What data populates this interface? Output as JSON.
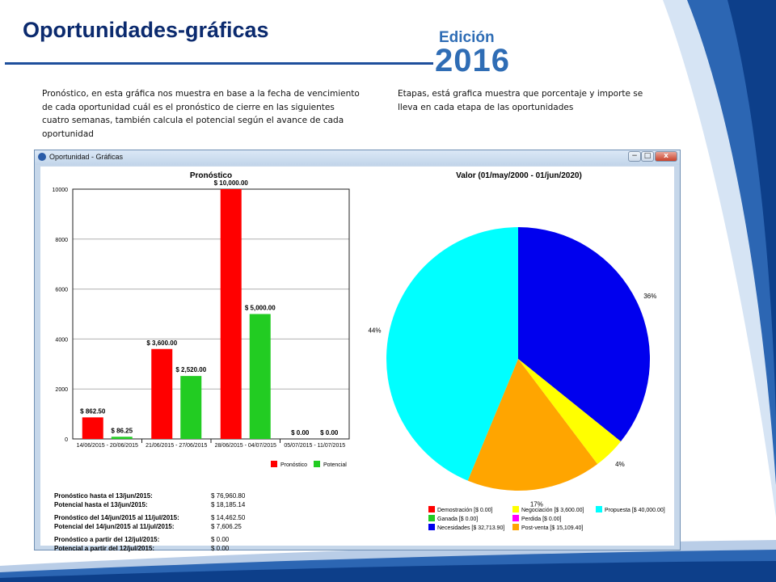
{
  "slide": {
    "title": "Oportunidades-gráficas",
    "badge_top": "Edición",
    "badge_year": "2016",
    "desc_left": "Pronóstico, en esta gráfica nos muestra en base a la fecha de vencimiento de cada oportunidad cuál es el pronóstico de cierre en las siguientes cuatro semanas, también calcula el potencial según el avance de cada oportunidad",
    "desc_right": "Etapas, está grafica muestra que porcentaje y importe se lleva en cada etapa de las oportunidades",
    "colors": {
      "title": "#0b2a6e",
      "accent": "#2f6db5"
    }
  },
  "window": {
    "title": "Oportunidad - Gráficas",
    "min_glyph": "−",
    "max_glyph": "□",
    "close_glyph": "x"
  },
  "chart_data": [
    {
      "type": "bar",
      "title": "Pronóstico",
      "xlabel": "",
      "ylabel": "",
      "categories": [
        "14/06/2015 - 20/06/2015",
        "21/06/2015 - 27/06/2015",
        "28/06/2015 - 04/07/2015",
        "05/07/2015 - 11/07/2015"
      ],
      "series": [
        {
          "name": "Pronóstico",
          "color": "#ff0000",
          "values": [
            862.5,
            3600,
            10000,
            0
          ],
          "labels": [
            "$ 862.50",
            "$ 3,600.00",
            "$ 10,000.00",
            "$ 0.00"
          ]
        },
        {
          "name": "Potencial",
          "color": "#22cc22",
          "values": [
            86.25,
            2520,
            5000,
            0
          ],
          "labels": [
            "$ 86.25",
            "$ 2,520.00",
            "$ 5,000.00",
            "$ 0.00"
          ]
        }
      ],
      "ylim": [
        0,
        10000
      ],
      "yticks": [
        0,
        2000,
        4000,
        6000,
        8000,
        10000
      ],
      "grid": true,
      "legend_position": "bottom-right"
    },
    {
      "type": "pie",
      "title": "Valor (01/may/2000 - 01/jun/2020)",
      "slices": [
        {
          "label": "Necesidades [$ 32,713.90]",
          "value": 32713.9,
          "percent_label": "36%",
          "color": "#0000ee"
        },
        {
          "label": "Negociación [$ 3,600.00]",
          "value": 3600,
          "percent_label": "4%",
          "color": "#ffff00"
        },
        {
          "label": "Post-venta [$ 15,109.40]",
          "value": 15109.4,
          "percent_label": "17%",
          "color": "#ffa500"
        },
        {
          "label": "Propuesta [$ 40,000.00]",
          "value": 40000,
          "percent_label": "44%",
          "color": "#00ffff"
        }
      ],
      "legend": [
        {
          "label": "Demostración [$ 0.00]",
          "color": "#ff0000"
        },
        {
          "label": "Negociación [$ 3,600.00]",
          "color": "#ffff00"
        },
        {
          "label": "Propuesta [$ 40,000.00]",
          "color": "#00ffff"
        },
        {
          "label": "Ganada [$ 0.00]",
          "color": "#22cc22"
        },
        {
          "label": "Perdida [$ 0.00]",
          "color": "#ff00ff"
        },
        {
          "label": "Necesidades [$ 32,713.90]",
          "color": "#0000ee"
        },
        {
          "label": "Post-venta [$ 15,109.40]",
          "color": "#ffa500"
        }
      ],
      "legend_position": "bottom"
    }
  ],
  "summary": [
    {
      "label": "Pronóstico hasta el 13/jun/2015:",
      "value": "$ 76,960.80"
    },
    {
      "label": "Potencial hasta el 13/jun/2015:",
      "value": "$ 18,185.14"
    },
    {
      "label": "Pronóstico del 14/jun/2015 al 11/jul/2015:",
      "value": "$ 14,462.50"
    },
    {
      "label": "Potencial del 14/jun/2015 al 11/jul/2015:",
      "value": "$ 7,606.25"
    },
    {
      "label": "Pronóstico a partir del 12/jul/2015:",
      "value": "$ 0.00"
    },
    {
      "label": "Potencial a partir del 12/jul/2015:",
      "value": "$ 0.00"
    }
  ]
}
